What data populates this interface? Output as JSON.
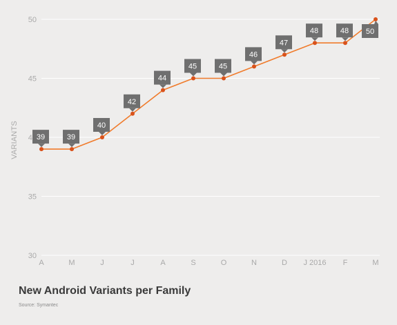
{
  "chart_data": {
    "type": "line",
    "title": "New Android Variants per Family",
    "source": "Source: Symantec",
    "xlabel": "",
    "ylabel": "VARIANTS",
    "ylim": [
      30,
      50
    ],
    "y_ticks": [
      30,
      35,
      40,
      45,
      50
    ],
    "grid": true,
    "legend": "none",
    "line_color": "#f07b2b",
    "point_color": "#d9521b",
    "label_box_color": "#6f6f6f",
    "categories": [
      "A",
      "M",
      "J",
      "J",
      "A",
      "S",
      "O",
      "N",
      "D",
      "J 2016",
      "F",
      "M"
    ],
    "series": [
      {
        "values": [
          39,
          39,
          40,
          42,
          44,
          45,
          45,
          46,
          47,
          48,
          48,
          50
        ]
      }
    ]
  }
}
